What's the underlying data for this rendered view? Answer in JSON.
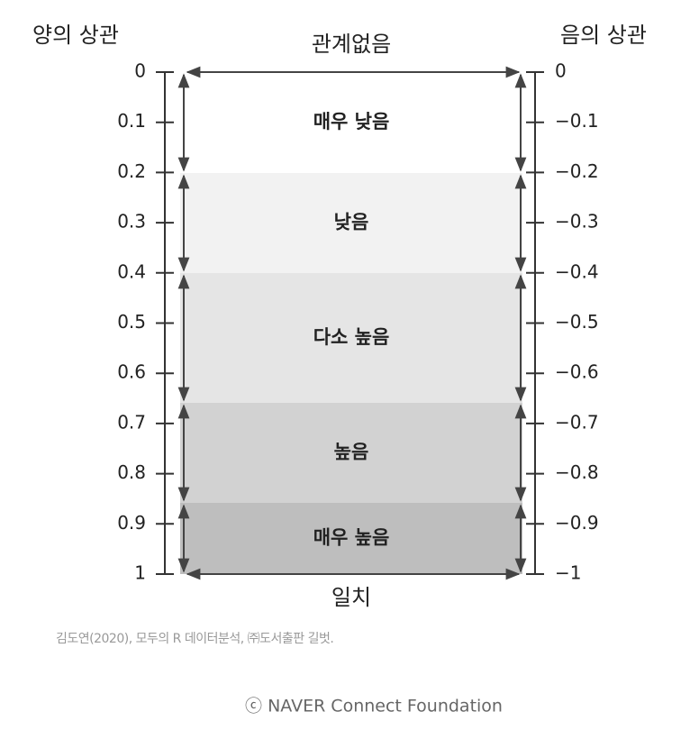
{
  "header": {
    "left_title": "양의 상관",
    "right_title": "음의 상관",
    "top_label": "관계없음",
    "bottom_label": "일치"
  },
  "left_ticks": [
    "0",
    "0.1",
    "0.2",
    "0.3",
    "0.4",
    "0.5",
    "0.6",
    "0.7",
    "0.8",
    "0.9",
    "1"
  ],
  "right_ticks": [
    "0",
    "−0.1",
    "−0.2",
    "−0.3",
    "−0.4",
    "−0.5",
    "−0.6",
    "−0.7",
    "−0.8",
    "−0.9",
    "−1"
  ],
  "bands": [
    {
      "label": "매우 낮음"
    },
    {
      "label": "낮음"
    },
    {
      "label": "다소 높음"
    },
    {
      "label": "높음"
    },
    {
      "label": "매우 높음"
    }
  ],
  "citation": "김도연(2020), 모두의 R 데이터분석, ㈜도서출판 길벗.",
  "footer": "ⓒ  NAVER Connect Foundation"
}
